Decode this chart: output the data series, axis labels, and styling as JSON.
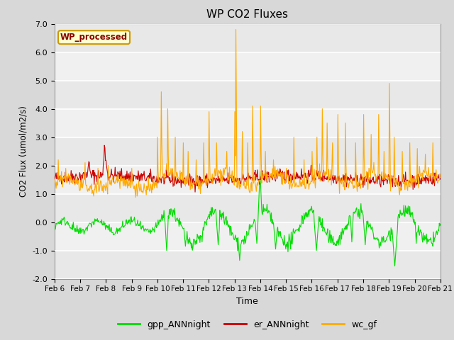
{
  "title": "WP CO2 Fluxes",
  "xlabel": "Time",
  "ylabel": "CO2 Flux (umol/m2/s)",
  "ylim": [
    -2.0,
    7.0
  ],
  "yticks": [
    -2.0,
    -1.0,
    0.0,
    1.0,
    2.0,
    3.0,
    4.0,
    5.0,
    6.0,
    7.0
  ],
  "ytick_labels": [
    "-2.0",
    "-1.0",
    "0.0",
    "1.0",
    "2.0",
    "3.0",
    "4.0",
    "5.0",
    "6.0",
    "7.0"
  ],
  "date_start": 6,
  "date_end": 21,
  "xtick_labels": [
    "Feb 6",
    "Feb 7",
    "Feb 8",
    "Feb 9",
    "Feb 10",
    "Feb 11",
    "Feb 12",
    "Feb 13",
    "Feb 14",
    "Feb 15",
    "Feb 16",
    "Feb 17",
    "Feb 18",
    "Feb 19",
    "Feb 20",
    "Feb 21"
  ],
  "color_gpp": "#00dd00",
  "color_er": "#cc0000",
  "color_wc": "#ffaa00",
  "legend_label_gpp": "gpp_ANNnight",
  "legend_label_er": "er_ANNnight",
  "legend_label_wc": "wc_gf",
  "wp_label": "WP_processed",
  "wp_label_color": "#880000",
  "wp_box_facecolor": "#ffffcc",
  "wp_box_edgecolor": "#cc9900",
  "bg_color": "#d8d8d8",
  "plot_bg_color": "#f0f0f0",
  "stripe_color": "#e8e8e8",
  "line_width": 0.8,
  "seed": 42,
  "n_points": 720
}
